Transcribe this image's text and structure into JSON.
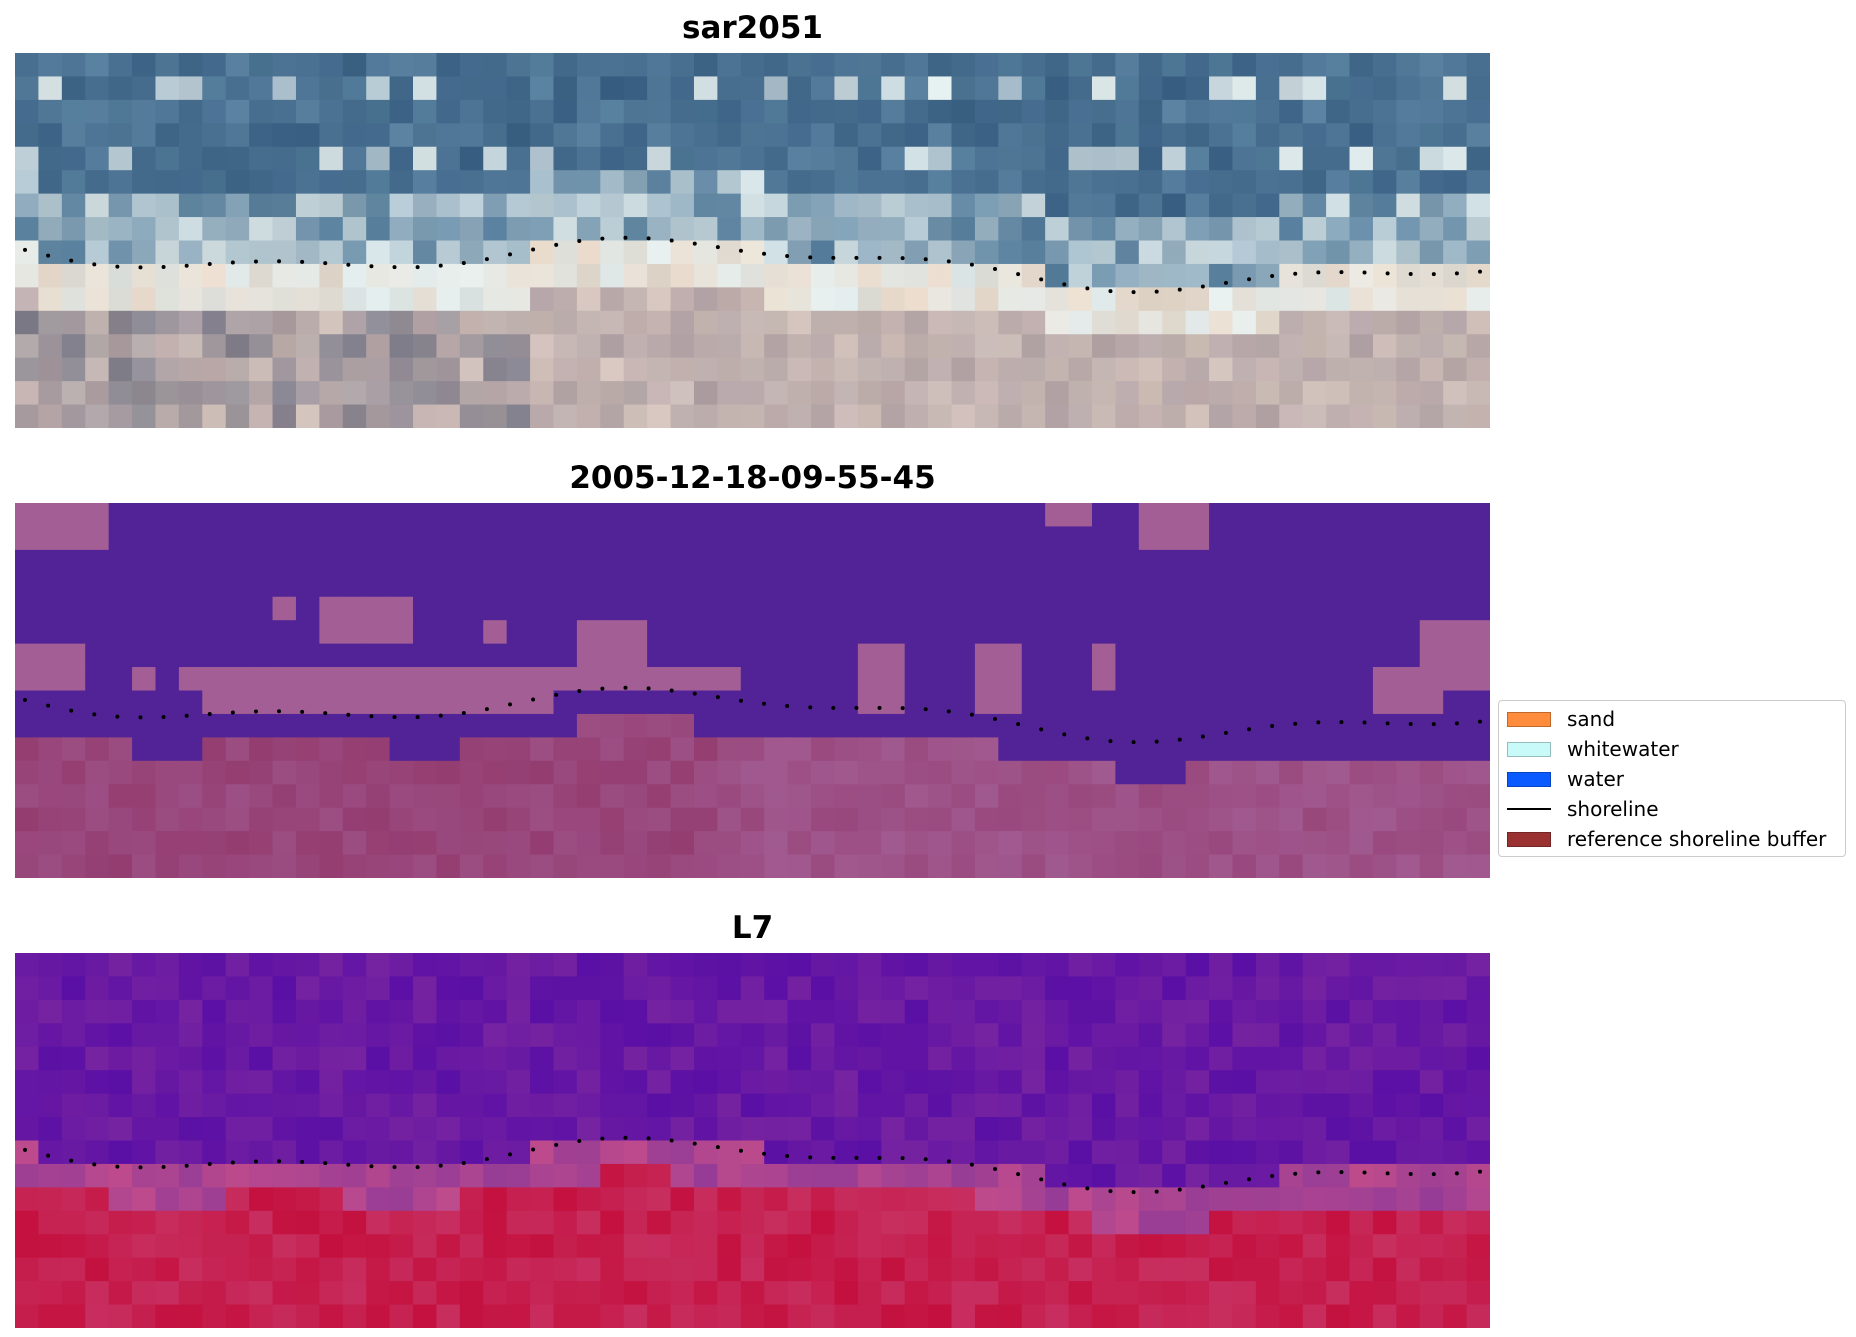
{
  "panels": [
    {
      "title": "sar2051",
      "kind": "rgb"
    },
    {
      "title": "2005-12-18-09-55-45",
      "kind": "classified"
    },
    {
      "title": "L7",
      "kind": "index"
    }
  ],
  "legend": {
    "items": [
      {
        "label": "sand",
        "type": "patch",
        "color": "#ff8c3c"
      },
      {
        "label": "whitewater",
        "type": "patch",
        "color": "#c8fafa"
      },
      {
        "label": "water",
        "type": "patch",
        "color": "#0a5aff"
      },
      {
        "label": "shoreline",
        "type": "line",
        "color": "#000000"
      },
      {
        "label": "reference shoreline buffer",
        "type": "patch",
        "color": "#9b3232"
      }
    ]
  },
  "colors": {
    "water_class": "#522397",
    "land_class": "#a35f95",
    "buffer_overlay": "#8c2a5d",
    "index_low": "#5a0fa5",
    "index_high": "#c4103e",
    "shoreline": "#000000"
  }
}
